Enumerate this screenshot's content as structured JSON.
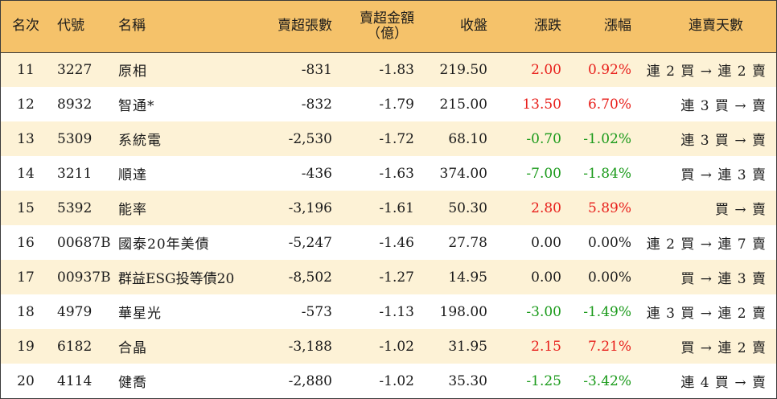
{
  "headers": {
    "rank": "名次",
    "code": "代號",
    "name": "名稱",
    "net_sell_shares": "賣超張數",
    "net_sell_amount_line1": "賣超金額",
    "net_sell_amount_line2": "（億）",
    "close": "收盤",
    "change": "漲跌",
    "change_pct": "漲幅",
    "streak": "連賣天數"
  },
  "rows": [
    {
      "rank": "11",
      "code": "3227",
      "name": "原相",
      "shares": "-831",
      "amount": "-1.83",
      "close": "219.50",
      "change": "2.00",
      "pct": "0.92%",
      "dir": "up",
      "streak": "連 2 買 → 連 2 賣"
    },
    {
      "rank": "12",
      "code": "8932",
      "name": "智通*",
      "shares": "-832",
      "amount": "-1.79",
      "close": "215.00",
      "change": "13.50",
      "pct": "6.70%",
      "dir": "up",
      "streak": "連 3 買 → 賣"
    },
    {
      "rank": "13",
      "code": "5309",
      "name": "系統電",
      "shares": "-2,530",
      "amount": "-1.72",
      "close": "68.10",
      "change": "-0.70",
      "pct": "-1.02%",
      "dir": "down",
      "streak": "連 3 買 → 賣"
    },
    {
      "rank": "14",
      "code": "3211",
      "name": "順達",
      "shares": "-436",
      "amount": "-1.63",
      "close": "374.00",
      "change": "-7.00",
      "pct": "-1.84%",
      "dir": "down",
      "streak": "買 → 連 3 賣"
    },
    {
      "rank": "15",
      "code": "5392",
      "name": "能率",
      "shares": "-3,196",
      "amount": "-1.61",
      "close": "50.30",
      "change": "2.80",
      "pct": "5.89%",
      "dir": "up",
      "streak": "買 → 賣"
    },
    {
      "rank": "16",
      "code": "00687B",
      "name": "國泰20年美債",
      "shares": "-5,247",
      "amount": "-1.46",
      "close": "27.78",
      "change": "0.00",
      "pct": "0.00%",
      "dir": "flat",
      "streak": "連 2 買 → 連 7 賣"
    },
    {
      "rank": "17",
      "code": "00937B",
      "name": "群益ESG投等債20",
      "shares": "-8,502",
      "amount": "-1.27",
      "close": "14.95",
      "change": "0.00",
      "pct": "0.00%",
      "dir": "flat",
      "streak": "買 → 連 3 賣"
    },
    {
      "rank": "18",
      "code": "4979",
      "name": "華星光",
      "shares": "-573",
      "amount": "-1.13",
      "close": "198.00",
      "change": "-3.00",
      "pct": "-1.49%",
      "dir": "down",
      "streak": "連 3 買 → 連 2 賣"
    },
    {
      "rank": "19",
      "code": "6182",
      "name": "合晶",
      "shares": "-3,188",
      "amount": "-1.02",
      "close": "31.95",
      "change": "2.15",
      "pct": "7.21%",
      "dir": "up",
      "streak": "買 → 連 2 賣"
    },
    {
      "rank": "20",
      "code": "4114",
      "name": "健喬",
      "shares": "-2,880",
      "amount": "-1.02",
      "close": "35.30",
      "change": "-1.25",
      "pct": "-3.42%",
      "dir": "down",
      "streak": "連 4 買 → 賣"
    }
  ],
  "colors": {
    "header_bg": "#f5c26a",
    "odd_row_bg": "#fdf2d6",
    "up": "#e8201c",
    "down": "#1a9a1a"
  }
}
